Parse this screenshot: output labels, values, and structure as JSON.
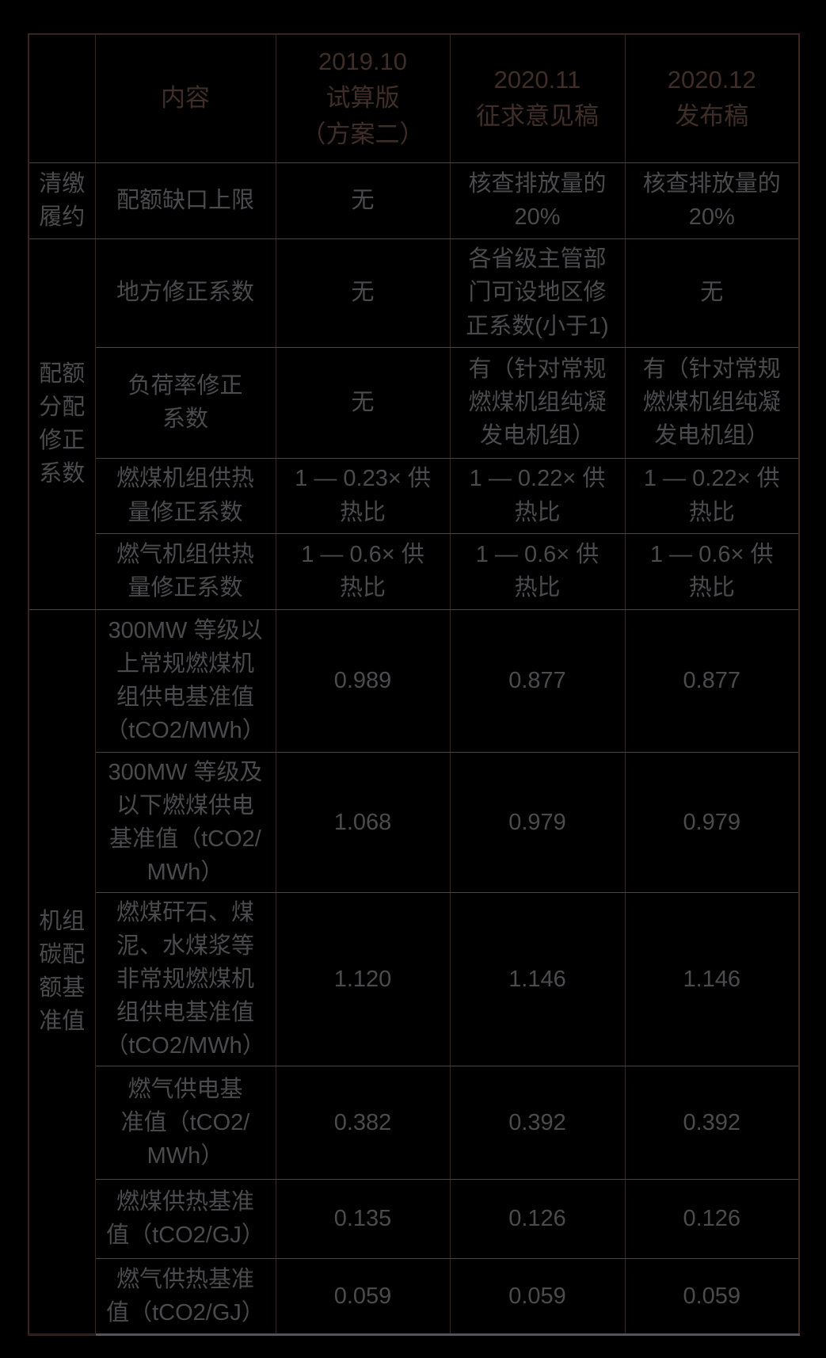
{
  "colors": {
    "background": "#000000",
    "header_text": "#3f2d28",
    "body_text": "#4b4a4c",
    "border_vertical": "#39271f",
    "border_horizontal": "#4a4444",
    "bottom_edge": "#56535c"
  },
  "table": {
    "columns": [
      "",
      "内容",
      "2019.10\n试算版\n（方案二）",
      "2020.11\n征求意见稿",
      "2020.12\n发布稿"
    ],
    "groups": [
      {
        "label": "清缴\n履约",
        "rows": [
          {
            "content": "配额缺口上限",
            "values": [
              "无",
              "核查排放量的\n20%",
              "核查排放量的\n20%"
            ]
          }
        ]
      },
      {
        "label": "配额\n分配\n修正\n系数",
        "rows": [
          {
            "content": "地方修正系数",
            "values": [
              "无",
              "各省级主管部\n门可设地区修\n正系数(小于1)",
              "无"
            ]
          },
          {
            "content": "负荷率修正\n系数",
            "values": [
              "无",
              "有（针对常规\n燃煤机组纯凝\n发电机组）",
              "有（针对常规\n燃煤机组纯凝\n发电机组）"
            ]
          },
          {
            "content": "燃煤机组供热\n量修正系数",
            "values": [
              "1 — 0.23× 供\n热比",
              "1 — 0.22× 供\n热比",
              "1 — 0.22× 供\n热比"
            ]
          },
          {
            "content": "燃气机组供热\n量修正系数",
            "values": [
              "1 — 0.6× 供\n热比",
              "1 — 0.6× 供\n热比",
              "1 — 0.6× 供\n热比"
            ]
          }
        ]
      },
      {
        "label": "机组\n碳配\n额基\n准值",
        "rows": [
          {
            "content": "300MW 等级以\n上常规燃煤机\n组供电基准值\n（tCO2/MWh）",
            "values": [
              "0.989",
              "0.877",
              "0.877"
            ]
          },
          {
            "content": "300MW 等级及\n以下燃煤供电\n基准值（tCO2/\nMWh）",
            "values": [
              "1.068",
              "0.979",
              "0.979"
            ]
          },
          {
            "content": "燃煤矸石、煤\n泥、水煤浆等\n非常规燃煤机\n组供电基准值\n（tCO2/MWh）",
            "values": [
              "1.120",
              "1.146",
              "1.146"
            ]
          },
          {
            "content": "燃气供电基\n准值（tCO2/\nMWh）",
            "values": [
              "0.382",
              "0.392",
              "0.392"
            ]
          },
          {
            "content": "燃煤供热基准\n值（tCO2/GJ）",
            "values": [
              "0.135",
              "0.126",
              "0.126"
            ]
          },
          {
            "content": "燃气供热基准\n值（tCO2/GJ）",
            "values": [
              "0.059",
              "0.059",
              "0.059"
            ]
          }
        ]
      }
    ]
  }
}
